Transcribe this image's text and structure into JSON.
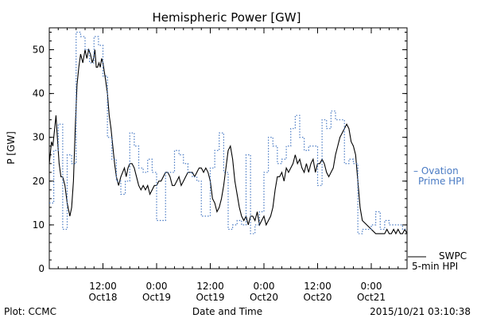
{
  "chart_data": {
    "type": "line",
    "title": "Hemispheric Power [GW]",
    "xlabel": "Date and Time",
    "ylabel": "P [GW]",
    "ylim": [
      0,
      55
    ],
    "xlim": [
      0,
      80
    ],
    "y_ticks": [
      0,
      10,
      20,
      30,
      40,
      50
    ],
    "x_ticks": [
      {
        "t": 12,
        "time": "12:00",
        "date": "Oct18"
      },
      {
        "t": 24,
        "time": "0:00",
        "date": "Oct19"
      },
      {
        "t": 36,
        "time": "12:00",
        "date": "Oct19"
      },
      {
        "t": 48,
        "time": "0:00",
        "date": "Oct20"
      },
      {
        "t": 60,
        "time": "12:00",
        "date": "Oct20"
      },
      {
        "t": 72,
        "time": "0:00",
        "date": "Oct21"
      }
    ],
    "series": [
      {
        "name": "SWPC 5-min HPI",
        "label_lines": [
          "SWPC",
          "5-min HPI"
        ],
        "color": "#000000",
        "style": "solid",
        "x": [
          0,
          0.5,
          0.8,
          1.2,
          1.5,
          1.8,
          2.2,
          2.6,
          3.0,
          3.5,
          4.0,
          4.6,
          5.0,
          5.4,
          5.8,
          6.2,
          6.6,
          7.0,
          7.5,
          8.0,
          8.4,
          8.8,
          9.2,
          9.6,
          9.9,
          10.2,
          10.5,
          10.8,
          11.1,
          11.4,
          11.7,
          12.0,
          12.3,
          12.6,
          13.0,
          13.4,
          13.8,
          14.2,
          14.6,
          15.0,
          15.5,
          16.0,
          16.4,
          16.8,
          17.2,
          17.6,
          18.0,
          18.5,
          19.0,
          19.5,
          20.0,
          20.5,
          21.0,
          21.5,
          22.0,
          22.5,
          23.0,
          23.5,
          24.0,
          24.5,
          25.0,
          25.5,
          26.0,
          26.5,
          27.0,
          27.5,
          28.0,
          28.5,
          29.0,
          29.5,
          30.0,
          30.5,
          31.0,
          31.5,
          32.0,
          32.5,
          33.0,
          33.5,
          34.0,
          34.5,
          35.0,
          35.5,
          36.0,
          36.5,
          37.0,
          37.5,
          38.0,
          38.5,
          39.0,
          39.5,
          40.0,
          40.5,
          41.0,
          41.5,
          42.0,
          42.5,
          43.0,
          43.5,
          44.0,
          44.5,
          45.0,
          45.5,
          46.0,
          46.5,
          47.0,
          47.5,
          48.0,
          48.5,
          49.0,
          49.5,
          50.0,
          50.5,
          51.0,
          51.5,
          52.0,
          52.5,
          53.0,
          53.5,
          54.0,
          54.5,
          55.0,
          55.5,
          56.0,
          56.5,
          57.0,
          57.5,
          58.0,
          58.5,
          59.0,
          59.5,
          60.0,
          60.5,
          61.0,
          61.5,
          62.0,
          62.5,
          63.0,
          63.5,
          64.0,
          64.5,
          65.0,
          65.5,
          66.0,
          66.5,
          67.0,
          67.5,
          68.0,
          68.5,
          69.0,
          69.5,
          70.0,
          71.0,
          72.0,
          73.0,
          74.0,
          75.0,
          75.5,
          76.0,
          76.5,
          77.0,
          77.5,
          78.0,
          78.5,
          79.0,
          79.5,
          80.0
        ],
        "y": [
          24,
          29,
          28,
          32,
          35,
          30,
          24,
          21,
          21,
          19,
          15,
          12,
          14,
          20,
          32,
          42,
          46,
          49,
          47,
          50,
          48,
          50,
          49,
          47,
          48,
          50,
          46,
          46,
          47,
          46,
          48,
          47,
          45,
          43,
          40,
          35,
          32,
          28,
          24,
          21,
          19,
          21,
          22,
          23,
          21,
          23,
          24,
          24,
          23,
          21,
          19,
          18,
          19,
          18,
          19,
          17,
          18,
          19,
          19,
          20,
          20,
          21,
          22,
          22,
          21,
          19,
          19,
          20,
          21,
          19,
          20,
          21,
          22,
          22,
          22,
          21,
          22,
          23,
          23,
          22,
          23,
          22,
          20,
          16,
          15,
          13,
          14,
          16,
          19,
          23,
          27,
          28,
          25,
          20,
          17,
          14,
          12,
          11,
          12,
          10,
          12,
          12,
          11,
          13,
          10,
          11,
          12,
          10,
          11,
          12,
          14,
          18,
          21,
          21,
          22,
          20,
          23,
          22,
          23,
          24,
          26,
          24,
          25,
          23,
          22,
          24,
          22,
          24,
          25,
          22,
          24,
          24,
          25,
          24,
          22,
          21,
          22,
          23,
          26,
          28,
          30,
          31,
          32,
          33,
          32,
          29,
          28,
          26,
          20,
          14,
          11,
          10,
          9,
          8,
          8,
          8,
          9,
          8,
          8,
          9,
          8,
          9,
          8,
          8,
          9,
          8
        ]
      },
      {
        "name": "Ovation Prime HPI",
        "label_lines": [
          "– Ovation",
          "Prime HPI"
        ],
        "color": "#4a7bc4",
        "style": "dotted-steps",
        "x": [
          0,
          1,
          2,
          3,
          4,
          5,
          6,
          7,
          8,
          9,
          10,
          11,
          12,
          13,
          14,
          15,
          16,
          17,
          18,
          19,
          20,
          21,
          22,
          23,
          24,
          25,
          26,
          27,
          28,
          29,
          30,
          31,
          32,
          33,
          34,
          35,
          36,
          37,
          38,
          39,
          40,
          41,
          42,
          43,
          44,
          45,
          46,
          47,
          48,
          49,
          50,
          51,
          52,
          53,
          54,
          55,
          56,
          57,
          58,
          59,
          60,
          61,
          62,
          63,
          64,
          65,
          66,
          67,
          68,
          69,
          70,
          71,
          72,
          73,
          74,
          75,
          76,
          77,
          78,
          79,
          80
        ],
        "y": [
          15,
          27,
          33,
          9,
          26,
          24,
          54,
          53,
          50,
          47,
          53,
          51,
          44,
          30,
          25,
          20,
          17,
          20,
          31,
          28,
          23,
          22,
          25,
          22,
          11,
          11,
          22,
          22,
          27,
          26,
          24,
          22,
          21,
          20,
          12,
          12,
          23,
          27,
          31,
          22,
          9,
          10,
          11,
          10,
          26,
          8,
          10,
          13,
          22,
          30,
          28,
          24,
          25,
          28,
          32,
          35,
          30,
          27,
          28,
          28,
          19,
          34,
          32,
          36,
          34,
          34,
          24,
          25,
          24,
          8,
          9,
          9,
          10,
          13,
          9,
          11,
          10,
          10,
          10,
          9,
          9
        ]
      }
    ],
    "legend": "right"
  },
  "footer": {
    "plot_credit": "Plot: CCMC",
    "timestamp": "2015/10/21 03:10:38"
  },
  "colors": {
    "background": "#ffffff",
    "axis": "#000000",
    "model": "#4a7bc4"
  }
}
